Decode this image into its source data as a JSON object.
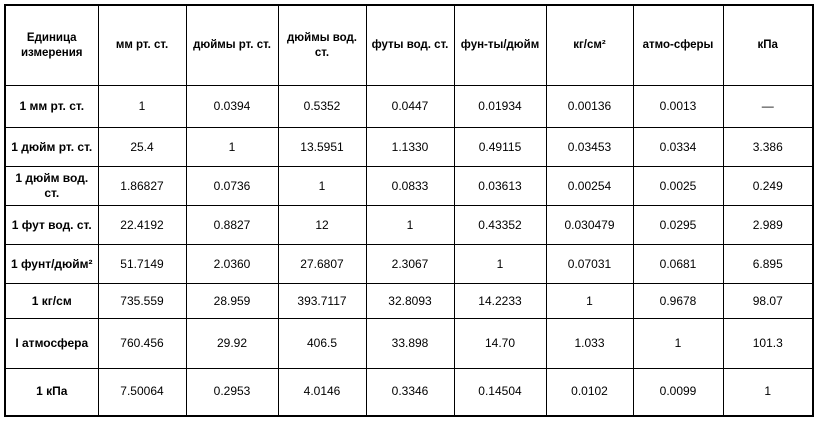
{
  "table": {
    "header": [
      "Единица измерения",
      "мм рт. ст.",
      "дюймы рт. ст.",
      "дюймы вод. ст.",
      "футы вод. ст.",
      "фун-ты/дюйм",
      "кг/см²",
      "атмо-сферы",
      "кПа"
    ],
    "rows": [
      [
        "1 мм рт. ст.",
        "1",
        "0.0394",
        "0.5352",
        "0.0447",
        "0.01934",
        "0.00136",
        "0.0013",
        "—"
      ],
      [
        "1 дюйм рт. ст.",
        "25.4",
        "1",
        "13.5951",
        "1.1330",
        "0.49115",
        "0.03453",
        "0.0334",
        "3.386"
      ],
      [
        "1 дюйм вод. ст.",
        "1.86827",
        "0.0736",
        "1",
        "0.0833",
        "0.03613",
        "0.00254",
        "0.0025",
        "0.249"
      ],
      [
        "1 фут вод. ст.",
        "22.4192",
        "0.8827",
        "12",
        "1",
        "0.43352",
        "0.030479",
        "0.0295",
        "2.989"
      ],
      [
        "1 фунт/дюйм²",
        "51.7149",
        "2.0360",
        "27.6807",
        "2.3067",
        "1",
        "0.07031",
        "0.0681",
        "6.895"
      ],
      [
        "1 кг/см",
        "735.559",
        "28.959",
        "393.7117",
        "32.8093",
        "14.2233",
        "1",
        "0.9678",
        "98.07"
      ],
      [
        "I атмосфера",
        "760.456",
        "29.92",
        "406.5",
        "33.898",
        "14.70",
        "1.033",
        "1",
        "101.3"
      ],
      [
        "1 кПа",
        "7.50064",
        "0.2953",
        "4.0146",
        "0.3346",
        "0.14504",
        "0.0102",
        "0.0099",
        "1"
      ]
    ]
  }
}
